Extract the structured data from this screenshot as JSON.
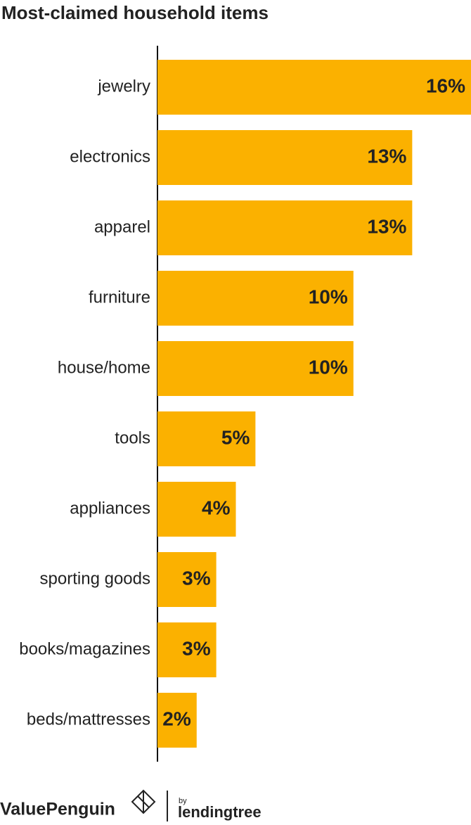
{
  "chart_data": {
    "type": "hbar",
    "title": "Most-claimed household items",
    "categories": [
      "jewelry",
      "electronics",
      "apparel",
      "furniture",
      "house/home",
      "tools",
      "appliances",
      "sporting goods",
      "books/magazines",
      "beds/mattresses"
    ],
    "values": [
      16,
      13,
      13,
      10,
      10,
      5,
      4,
      3,
      3,
      2
    ],
    "value_labels": [
      "16%",
      "13%",
      "13%",
      "10%",
      "10%",
      "5%",
      "4%",
      "3%",
      "3%",
      "2%"
    ],
    "color": "#fbb100",
    "xlim": [
      0,
      16
    ]
  },
  "footer": {
    "brand": "ValuePenguin",
    "by": "by",
    "partner": "lendingtree"
  }
}
